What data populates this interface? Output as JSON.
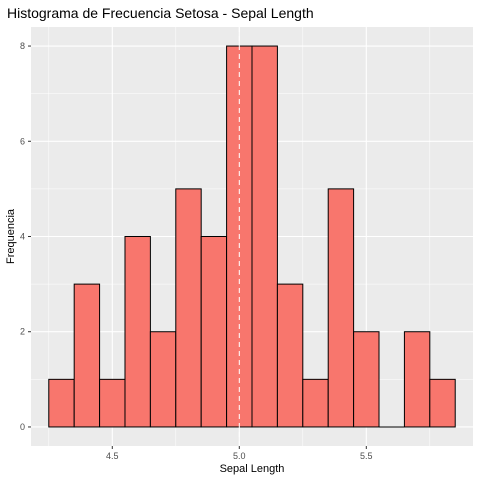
{
  "chart_data": {
    "type": "bar",
    "title": "Histograma de Frecuencia Setosa - Sepal Length",
    "xlabel": "Sepal Length",
    "ylabel": "Frequencia",
    "bin_width": 0.1,
    "bins": [
      {
        "x0": 4.25,
        "x1": 4.35,
        "count": 1
      },
      {
        "x0": 4.35,
        "x1": 4.45,
        "count": 3
      },
      {
        "x0": 4.45,
        "x1": 4.55,
        "count": 1
      },
      {
        "x0": 4.55,
        "x1": 4.65,
        "count": 4
      },
      {
        "x0": 4.65,
        "x1": 4.75,
        "count": 2
      },
      {
        "x0": 4.75,
        "x1": 4.85,
        "count": 5
      },
      {
        "x0": 4.85,
        "x1": 4.95,
        "count": 4
      },
      {
        "x0": 4.95,
        "x1": 5.05,
        "count": 8
      },
      {
        "x0": 5.05,
        "x1": 5.15,
        "count": 8
      },
      {
        "x0": 5.15,
        "x1": 5.25,
        "count": 3
      },
      {
        "x0": 5.25,
        "x1": 5.35,
        "count": 1
      },
      {
        "x0": 5.35,
        "x1": 5.45,
        "count": 5
      },
      {
        "x0": 5.45,
        "x1": 5.55,
        "count": 2
      },
      {
        "x0": 5.55,
        "x1": 5.65,
        "count": 0
      },
      {
        "x0": 5.65,
        "x1": 5.75,
        "count": 2
      },
      {
        "x0": 5.75,
        "x1": 5.85,
        "count": 1
      }
    ],
    "xlim": [
      4.18,
      5.92
    ],
    "ylim": [
      -0.4,
      8.4
    ],
    "x_ticks": [
      4.5,
      5.0,
      5.5
    ],
    "x_tick_labels": [
      "4.5",
      "5.0",
      "5.5"
    ],
    "y_ticks": [
      0,
      2,
      4,
      6,
      8
    ],
    "y_tick_labels": [
      "0",
      "2",
      "4",
      "6",
      "8"
    ],
    "reference_line": {
      "x": 5.0,
      "style": "dashed"
    },
    "grid": true,
    "colors": {
      "panel": "#EBEBEB",
      "grid_major": "#FFFFFF",
      "bar_fill": "#F8766D",
      "bar_stroke": "#000000",
      "ref_line": "#FFFFFF"
    }
  }
}
